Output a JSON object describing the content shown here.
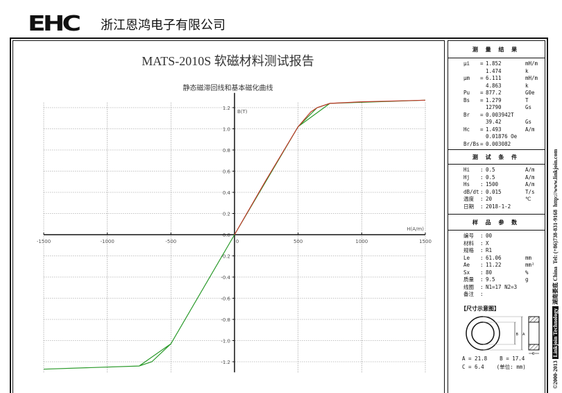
{
  "header": {
    "logo": "EHC",
    "company": "浙江恩鸿电子有限公司"
  },
  "report": {
    "title": "MATS-2010S 软磁材料测试报告",
    "subtitle": "静态磁滞回线和基本磁化曲线"
  },
  "results": {
    "heading": "测 量 结 果",
    "rows": [
      [
        "μi",
        "=",
        "1.852",
        "mH/m"
      ],
      [
        "",
        "",
        "1.474",
        "k"
      ],
      [
        "μm",
        "=",
        "6.111",
        "mH/m"
      ],
      [
        "",
        "",
        "4.863",
        "k"
      ],
      [
        "Pu",
        "=",
        "877.2",
        "G0e"
      ],
      [
        "Bs",
        "=",
        "1.279",
        "T"
      ],
      [
        "",
        "",
        "12790",
        "Gs"
      ],
      [
        "Br",
        "=",
        "0.003942T",
        ""
      ],
      [
        "",
        "",
        "39.42",
        "Gs"
      ],
      [
        "Hc",
        "=",
        "1.493",
        "A/m"
      ],
      [
        "",
        "",
        "0.01876 Oe",
        ""
      ],
      [
        "Br/Bs",
        "=",
        "0.003082",
        ""
      ]
    ]
  },
  "conditions": {
    "heading": "测 试 条 件",
    "rows": [
      [
        "Hi",
        ":",
        "0.5",
        "A/m"
      ],
      [
        "Hj",
        ":",
        "0.5",
        "A/m"
      ],
      [
        "Hs",
        ":",
        "1500",
        "A/m"
      ],
      [
        "dB/dt",
        ":",
        "0.015",
        "T/s"
      ],
      [
        "温度",
        ":",
        "20",
        "℃"
      ],
      [
        "日期",
        ":",
        "2018-1-2",
        ""
      ]
    ]
  },
  "sample": {
    "heading": "样 品 参 数",
    "rows": [
      [
        "编号",
        ":",
        "00",
        ""
      ],
      [
        "材料",
        ":",
        "X",
        ""
      ],
      [
        "规格",
        ":",
        "R1",
        ""
      ],
      [
        "Le",
        ":",
        "61.06",
        "mm"
      ],
      [
        "Ae",
        ":",
        "11.22",
        "mm²"
      ],
      [
        "Sx",
        ":",
        "80",
        "%"
      ],
      [
        "质量",
        ":",
        "9.5",
        "g"
      ],
      [
        "线圈",
        ":",
        "N1=17 N2=3",
        ""
      ],
      [
        "备注",
        ":",
        "",
        ""
      ]
    ],
    "diagram_title": "【尺寸示意图】",
    "dims_line1": "A = 21.8    B = 17.4",
    "dims_line2": "C = 6.4    (单位: mm)",
    "label_a": "A",
    "label_b": "B",
    "label_c": "C"
  },
  "side_text": {
    "copyright": "©2000-2013",
    "brand": "Linkjoin Technology",
    "location": "湖南娄底 China",
    "tel": "Tel: (+86)738-831-9168",
    "url": "http://www.linkjoin.com"
  },
  "chart_data": {
    "type": "line",
    "xlabel": "H(A/m)",
    "ylabel": "B(T)",
    "xlim": [
      -1500,
      1500
    ],
    "ylim": [
      -1.3,
      1.3
    ],
    "xticks": [
      -1500,
      -1000,
      -500,
      0,
      500,
      1000,
      1500
    ],
    "yticks": [
      "1.2",
      "1.0",
      "0.8",
      "0.6",
      "0.4",
      "0.2",
      "0.0",
      "-0.2",
      "-0.4",
      "-0.6",
      "-0.8",
      "-1.0",
      "-1.2"
    ],
    "grid": true,
    "colors": {
      "hysteresis": "#2a9a2a",
      "basic": "#c0392b"
    },
    "series": [
      {
        "key": "hysteresis",
        "points": [
          [
            -1500,
            -1.27
          ],
          [
            -750,
            -1.24
          ],
          [
            -500,
            -1.03
          ],
          [
            0,
            0
          ],
          [
            500,
            1.02
          ],
          [
            750,
            1.24
          ],
          [
            1500,
            1.27
          ],
          [
            750,
            1.24
          ],
          [
            650,
            1.2
          ],
          [
            500,
            1.02
          ],
          [
            0,
            0
          ],
          [
            -500,
            -1.03
          ],
          [
            -650,
            -1.2
          ],
          [
            -750,
            -1.24
          ],
          [
            -1500,
            -1.27
          ]
        ]
      },
      {
        "key": "basic",
        "points": [
          [
            0,
            0
          ],
          [
            250,
            0.52
          ],
          [
            500,
            1.02
          ],
          [
            600,
            1.16
          ],
          [
            650,
            1.2
          ],
          [
            750,
            1.24
          ],
          [
            1000,
            1.255
          ],
          [
            1500,
            1.27
          ]
        ]
      }
    ]
  }
}
